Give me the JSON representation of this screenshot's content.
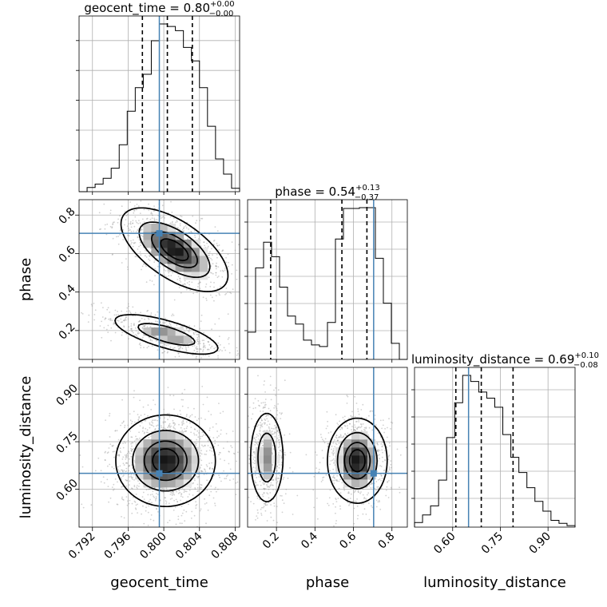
{
  "colors": {
    "truth": "#4682b4",
    "hist": "#000000",
    "quantile": "#000000",
    "scatter": "#9a9a9a",
    "grid": "#b0b0b0"
  },
  "chart_data": {
    "type": "corner",
    "grid": true,
    "parameters": [
      {
        "name": "geocent_time",
        "xlabel": "geocent_time",
        "title_name": "geocent_time = 0.80",
        "title_sup": "+0.00",
        "title_sub": "−0.00",
        "range": [
          0.7905,
          0.8085
        ],
        "ticks": [
          0.792,
          0.796,
          0.8,
          0.804,
          0.808
        ],
        "tick_labels": [
          "0.792",
          "0.796",
          "0.800",
          "0.804",
          "0.808"
        ],
        "truth": 0.7995,
        "quantiles": [
          0.7976,
          0.8004,
          0.8032
        ],
        "hist_edges": [
          0.7905,
          0.7914,
          0.7923,
          0.7932,
          0.7941,
          0.795,
          0.7959,
          0.7968,
          0.7977,
          0.7986,
          0.7995,
          0.8004,
          0.8013,
          0.8022,
          0.8031,
          0.804,
          0.8049,
          0.8058,
          0.8067,
          0.8076,
          0.8085
        ],
        "hist_counts": [
          0,
          25,
          45,
          80,
          140,
          280,
          480,
          620,
          700,
          900,
          1000,
          985,
          960,
          860,
          780,
          620,
          390,
          195,
          105,
          20
        ]
      },
      {
        "name": "phase",
        "xlabel": "phase",
        "ylabel": "phase",
        "title_name": "phase = 0.54",
        "title_sup": "+0.13",
        "title_sub": "−0.37",
        "range": [
          0.05,
          0.88
        ],
        "ticks": [
          0.2,
          0.4,
          0.6,
          0.8
        ],
        "tick_labels": [
          "0.2",
          "0.4",
          "0.6",
          "0.8"
        ],
        "truth": 0.705,
        "quantiles": [
          0.17,
          0.54,
          0.67
        ],
        "hist_edges": [
          0.05,
          0.0915,
          0.133,
          0.1745,
          0.216,
          0.2575,
          0.299,
          0.3405,
          0.382,
          0.4235,
          0.465,
          0.5065,
          0.548,
          0.5895,
          0.631,
          0.6725,
          0.714,
          0.7555,
          0.797,
          0.8385,
          0.88
        ],
        "hist_counts": [
          170,
          570,
          730,
          640,
          450,
          270,
          220,
          120,
          90,
          80,
          230,
          750,
          940,
          940,
          945,
          945,
          630,
          350,
          100,
          0
        ]
      },
      {
        "name": "luminosity_distance",
        "xlabel": "luminosity_distance",
        "ylabel": "luminosity_distance",
        "title_name": "luminosity_distance = 0.69",
        "title_sup": "+0.10",
        "title_sub": "−0.08",
        "range": [
          0.48,
          0.985
        ],
        "ticks": [
          0.6,
          0.75,
          0.9
        ],
        "tick_labels": [
          "0.60",
          "0.75",
          "0.90"
        ],
        "truth": 0.65,
        "quantiles": [
          0.61,
          0.69,
          0.79
        ],
        "hist_edges": [
          0.48,
          0.50525,
          0.5305,
          0.55575,
          0.581,
          0.60625,
          0.6315,
          0.65675,
          0.682,
          0.70725,
          0.7325,
          0.75775,
          0.783,
          0.80825,
          0.8335,
          0.85875,
          0.884,
          0.90925,
          0.9345,
          0.95975,
          0.985
        ],
        "hist_counts": [
          30,
          80,
          140,
          310,
          590,
          820,
          1000,
          960,
          890,
          850,
          790,
          610,
          460,
          360,
          260,
          170,
          105,
          45,
          25,
          10
        ]
      }
    ],
    "contour_levels": [
      0.118,
      0.393,
      0.675,
      0.865
    ],
    "pair_panels": [
      {
        "x": "geocent_time",
        "y": "phase",
        "modes": [
          {
            "cx": 0.8012,
            "cy": 0.62,
            "sx": 0.0029,
            "sy": 0.105,
            "rho": -0.62,
            "w": 0.6
          },
          {
            "cx": 0.8003,
            "cy": 0.18,
            "sx": 0.0031,
            "sy": 0.055,
            "rho": -0.7,
            "w": 0.4
          }
        ]
      },
      {
        "x": "geocent_time",
        "y": "luminosity_distance",
        "modes": [
          {
            "cx": 0.8002,
            "cy": 0.69,
            "sx": 0.0027,
            "sy": 0.07,
            "rho": 0.0,
            "w": 1.0
          }
        ]
      },
      {
        "x": "phase",
        "y": "luminosity_distance",
        "modes": [
          {
            "cx": 0.15,
            "cy": 0.7,
            "sx": 0.045,
            "sy": 0.075,
            "rho": 0.0,
            "w": 0.4
          },
          {
            "cx": 0.62,
            "cy": 0.69,
            "sx": 0.075,
            "sy": 0.065,
            "rho": 0.0,
            "w": 0.6
          }
        ]
      }
    ]
  }
}
